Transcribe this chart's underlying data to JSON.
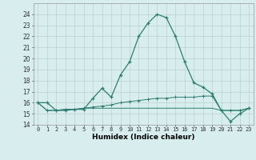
{
  "xlabel": "Humidex (Indice chaleur)",
  "x_values": [
    0,
    1,
    2,
    3,
    4,
    5,
    6,
    7,
    8,
    9,
    10,
    11,
    12,
    13,
    14,
    15,
    16,
    17,
    18,
    19,
    20,
    21,
    22,
    23
  ],
  "line1": [
    16.0,
    16.0,
    15.3,
    15.3,
    15.4,
    15.4,
    16.4,
    17.3,
    16.5,
    18.5,
    19.7,
    22.0,
    23.2,
    24.0,
    23.7,
    22.0,
    19.7,
    17.8,
    17.4,
    16.8,
    15.3,
    14.3,
    15.0,
    15.5
  ],
  "line2": [
    16.0,
    15.3,
    15.3,
    15.4,
    15.4,
    15.5,
    15.6,
    15.7,
    15.8,
    16.0,
    16.1,
    16.2,
    16.3,
    16.4,
    16.4,
    16.5,
    16.5,
    16.5,
    16.6,
    16.6,
    15.3,
    15.3,
    15.3,
    15.5
  ],
  "line3": [
    16.0,
    15.3,
    15.3,
    15.4,
    15.4,
    15.5,
    15.5,
    15.5,
    15.5,
    15.5,
    15.5,
    15.5,
    15.5,
    15.5,
    15.5,
    15.5,
    15.5,
    15.5,
    15.5,
    15.5,
    15.3,
    15.3,
    15.3,
    15.5
  ],
  "line_color": "#2e7d70",
  "bg_color": "#d8eeee",
  "grid_color": "#b8d0d0",
  "ylim": [
    14,
    25
  ],
  "yticks": [
    14,
    15,
    16,
    17,
    18,
    19,
    20,
    21,
    22,
    23,
    24
  ],
  "xlim": [
    -0.5,
    23.5
  ],
  "xtick_fontsize": 5.0,
  "ytick_fontsize": 5.5,
  "xlabel_fontsize": 6.5
}
